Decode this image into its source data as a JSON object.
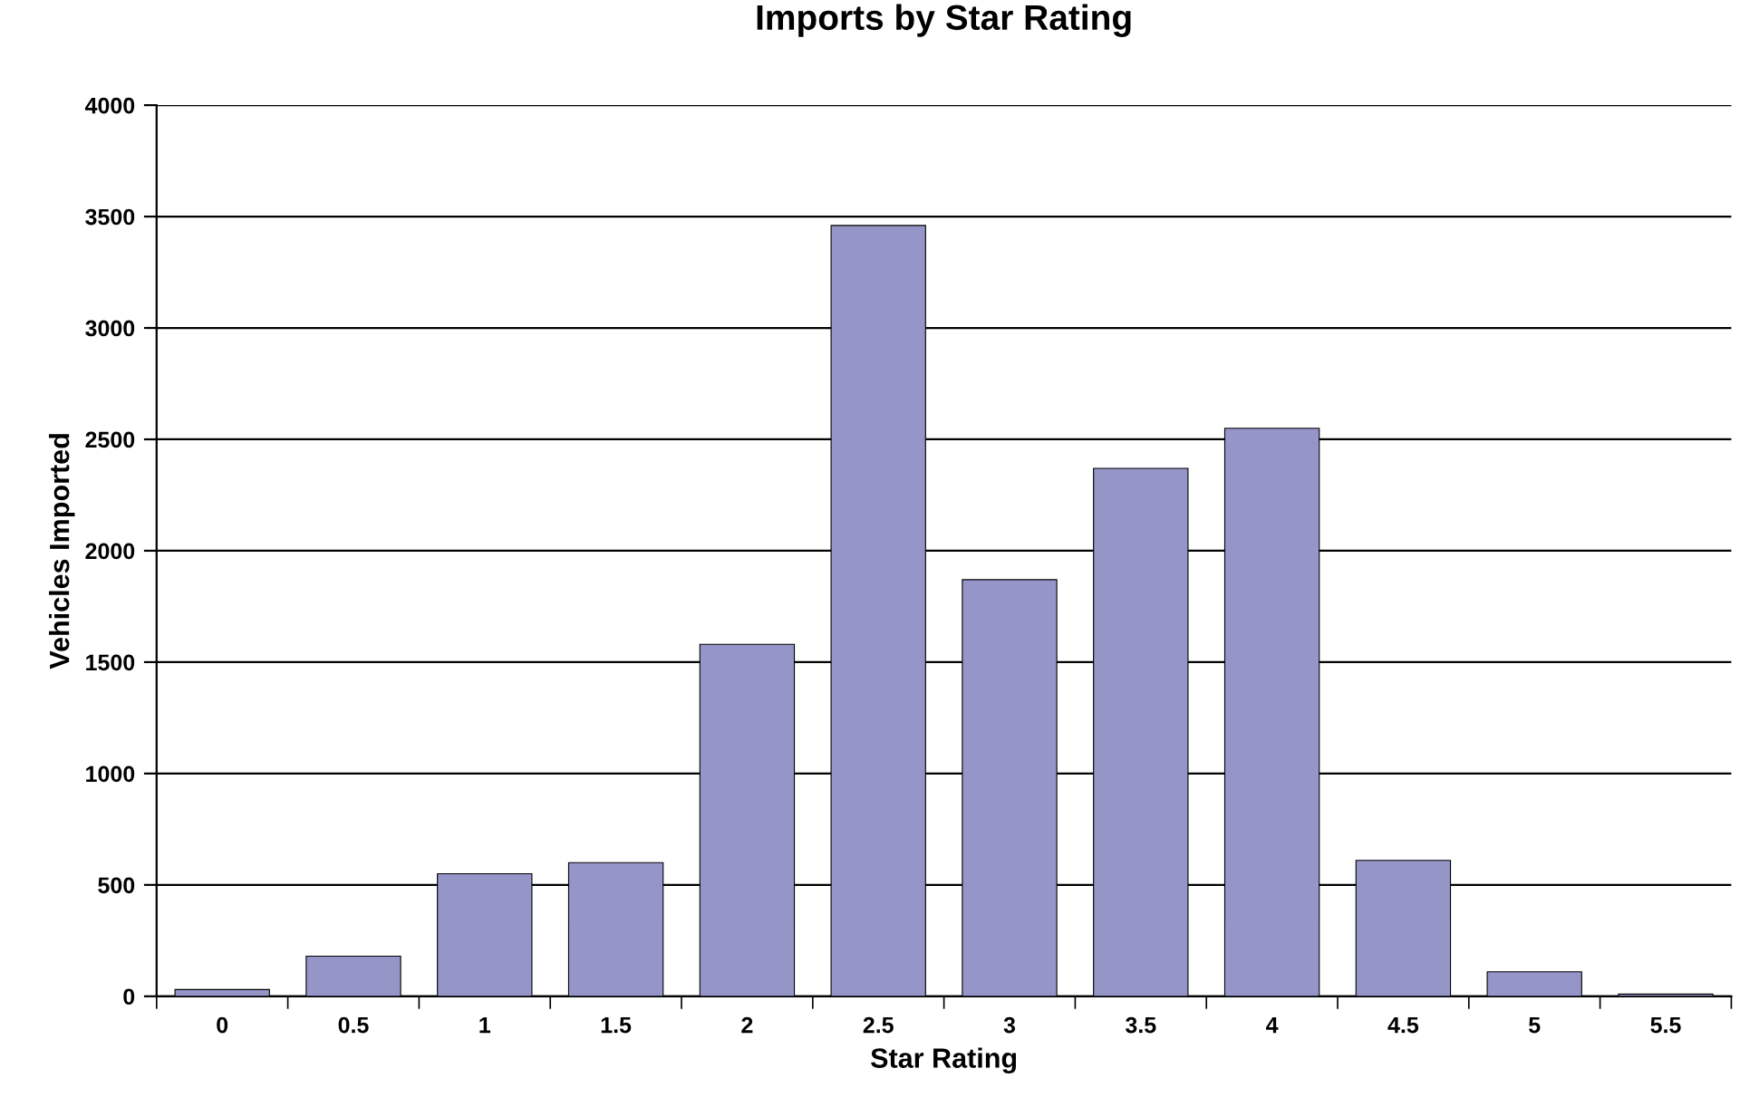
{
  "chart_data": {
    "type": "bar",
    "title": "Imports by Star Rating",
    "xlabel": "Star Rating",
    "ylabel": "Vehicles Imported",
    "categories": [
      "0",
      "0.5",
      "1",
      "1.5",
      "2",
      "2.5",
      "3",
      "3.5",
      "4",
      "4.5",
      "5",
      "5.5"
    ],
    "values": [
      30,
      180,
      550,
      600,
      1580,
      3460,
      1870,
      2370,
      2550,
      610,
      110,
      10
    ],
    "color": "#9595c8",
    "ylim": [
      0,
      4000
    ],
    "yticks": [
      0,
      500,
      1000,
      1500,
      2000,
      2500,
      3000,
      3500,
      4000
    ],
    "grid": "y",
    "legend": false
  }
}
